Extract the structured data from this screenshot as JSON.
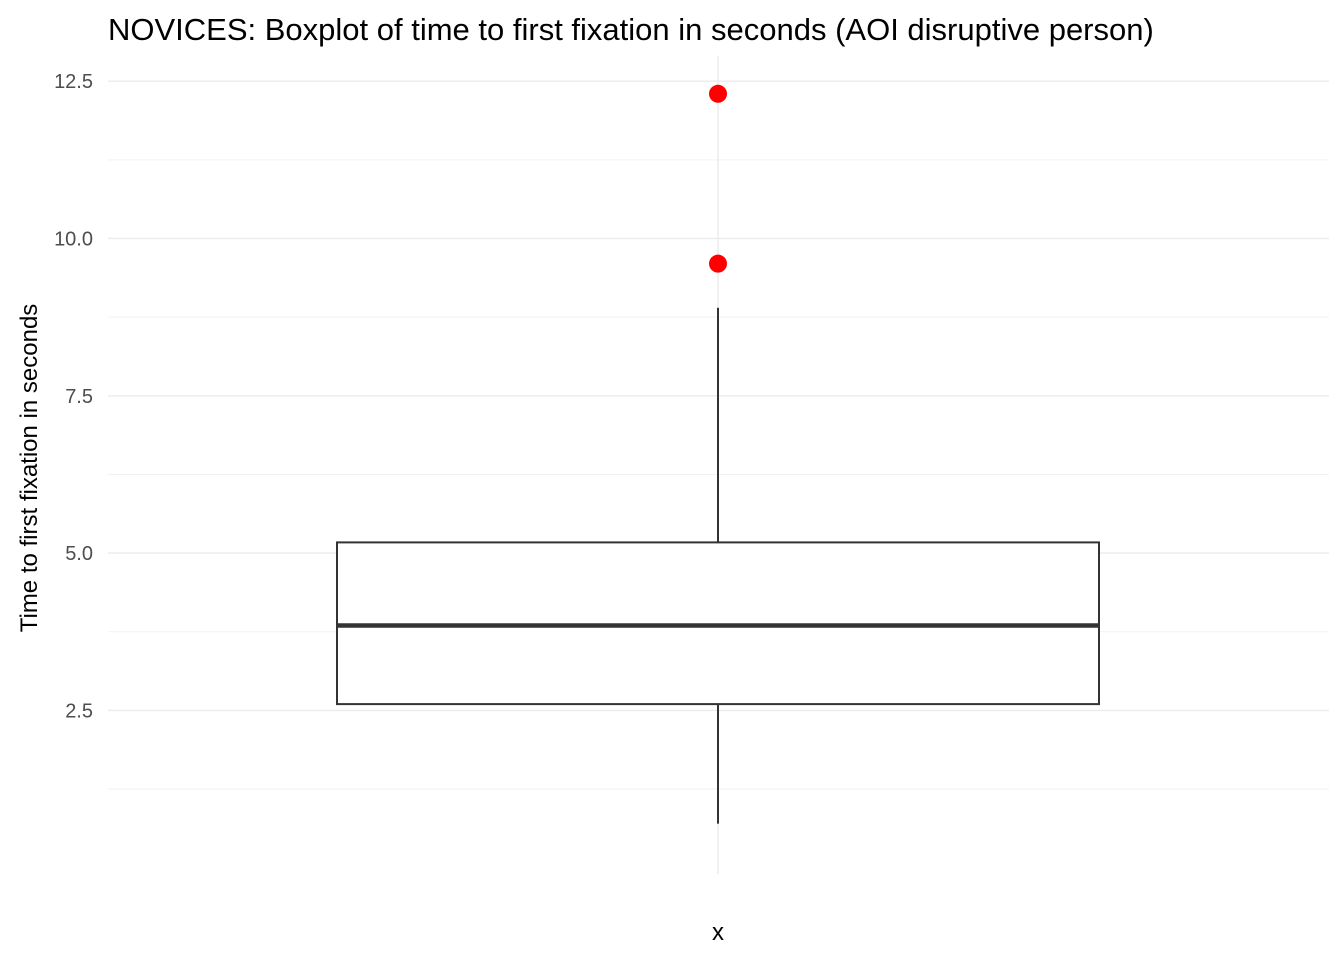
{
  "chart_data": {
    "type": "boxplot",
    "title": "NOVICES: Boxplot of time to first fixation in seconds (AOI disruptive person)",
    "xlabel": "x",
    "ylabel": "Time to first fixation in seconds",
    "ylim": [
      -0.1,
      12.9
    ],
    "y_major_ticks": [
      2.5,
      5.0,
      7.5,
      10.0,
      12.5
    ],
    "y_tick_labels": [
      "2.5",
      "5.0",
      "7.5",
      "10.0",
      "12.5"
    ],
    "y_minor_ticks": [
      1.25,
      3.75,
      6.25,
      8.75,
      11.25
    ],
    "grid": true,
    "box": {
      "whisker_low": 0.7,
      "q1": 2.6,
      "median": 3.85,
      "q3": 5.17,
      "whisker_high": 8.9
    },
    "outliers": [
      9.6,
      12.3
    ],
    "colors": {
      "box_line": "#333333",
      "box_fill": "#ffffff",
      "outlier": "#ff0000",
      "grid": "#ebebeb"
    }
  }
}
